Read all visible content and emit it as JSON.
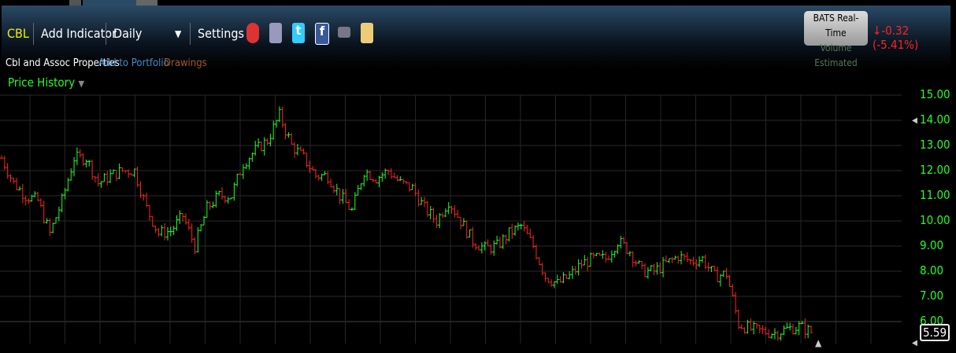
{
  "toolbar": {
    "symbol": "CBL",
    "add_indicator": "Add Indicator",
    "interval": "Daily",
    "settings": "Settings",
    "icons": [
      "alarm-clock-icon",
      "database-icon",
      "twitter-icon",
      "facebook-icon",
      "camera-icon",
      "notepad-icon"
    ]
  },
  "subbar": {
    "company": "Cbl and Assoc Properties",
    "add_portfolio": "Add to Portfolio",
    "drawings": "Drawings"
  },
  "badge": {
    "line1": "BATS Real-Time",
    "line2": "Volume Estimated"
  },
  "change": {
    "text": "-0.32 (-5.41%)",
    "direction": "down",
    "color": "#ff2222"
  },
  "panel": {
    "title": "Price History"
  },
  "chart_data": {
    "type": "ohlc",
    "interval": "daily",
    "ylim": [
      5,
      15
    ],
    "yticks": [
      "15.00",
      "14.00",
      "13.00",
      "12.00",
      "11.00",
      "10.00",
      "9.00",
      "8.00",
      "7.00",
      "6.00"
    ],
    "last_price": "5.59",
    "up_color": "#22ff22",
    "down_color": "#ff2222",
    "grid": true,
    "closes_approx": [
      12.5,
      11.5,
      11.0,
      10.8,
      9.5,
      10.8,
      12.5,
      12.5,
      11.5,
      11.8,
      12.0,
      12.0,
      10.5,
      9.5,
      9.6,
      10.2,
      9.0,
      10.5,
      11.0,
      11.0,
      12.3,
      12.8,
      13.2,
      14.2,
      13.0,
      12.5,
      11.8,
      11.8,
      11.0,
      10.4,
      12.0,
      11.7,
      12.0,
      11.5,
      11.3,
      10.5,
      10.0,
      10.8,
      10.0,
      9.2,
      8.9,
      9.0,
      9.5,
      9.8,
      9.0,
      7.8,
      7.5,
      7.8,
      8.3,
      8.5,
      8.5,
      9.2,
      8.8,
      8.0,
      8.0,
      8.3,
      8.6,
      8.4,
      8.5,
      7.8,
      7.9,
      5.9,
      5.7,
      5.6,
      5.55,
      5.7,
      5.8,
      5.59
    ]
  }
}
